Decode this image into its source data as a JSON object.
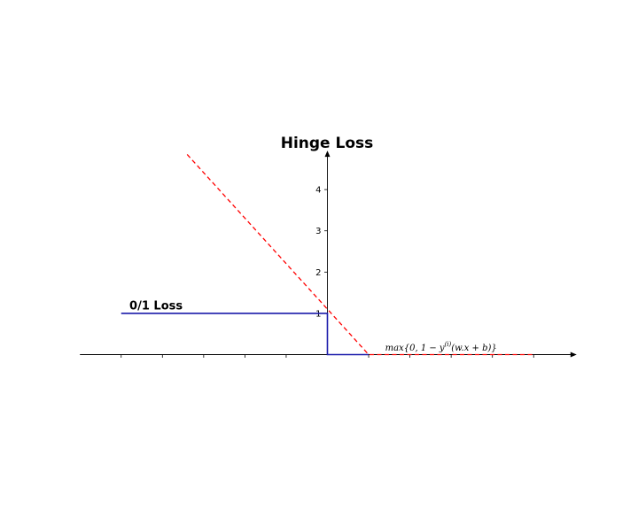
{
  "chart_data": {
    "type": "line",
    "title": "Hinge Loss",
    "xlabel": "",
    "ylabel": "",
    "xlim": [
      -6,
      6
    ],
    "ylim": [
      0,
      4.9
    ],
    "x_ticks": [
      -5,
      -4,
      -3,
      -2,
      -1,
      0,
      1,
      2,
      3,
      4,
      5
    ],
    "y_ticks": [
      1,
      2,
      3,
      4
    ],
    "y_tick_labels": [
      "1",
      "2",
      "3",
      "4"
    ],
    "grid": false,
    "series": [
      {
        "key": "hinge",
        "color": "#ff0000",
        "style": "dashed",
        "x": [
          -3.4,
          1,
          5
        ],
        "y": [
          4.85,
          0,
          0
        ]
      },
      {
        "key": "zero_one",
        "color": "#1a1aaa",
        "style": "solid",
        "x": [
          -5,
          0,
          0,
          1
        ],
        "y": [
          1,
          1,
          0,
          0
        ]
      }
    ],
    "annotations": [
      {
        "key": "zero_one_label",
        "text": "0/1 Loss",
        "x": -4.8,
        "y": 1.05,
        "weight": "bold"
      },
      {
        "key": "hinge_formula",
        "x": 1.4,
        "y": 0.05,
        "parts": [
          "max{0, 1 − y",
          "(i)",
          "(w.x + b)}"
        ]
      }
    ]
  }
}
